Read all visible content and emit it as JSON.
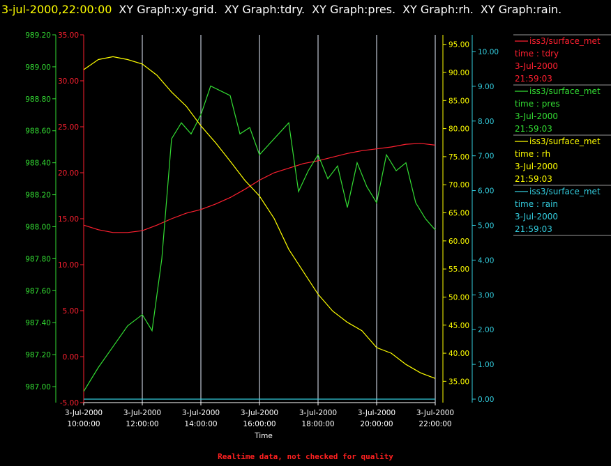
{
  "header": {
    "timestamp": "3-jul-2000,22:00:00",
    "graph_titles": [
      "XY Graph:xy-grid.",
      "XY Graph:tdry.",
      "XY Graph:pres.",
      "XY Graph:rh.",
      "XY Graph:rain."
    ]
  },
  "footer": {
    "note": "Realtime data, not checked for quality"
  },
  "colors": {
    "tdry": "#ff2030",
    "pres": "#33dd33",
    "rh": "#ffff00",
    "rain": "#33ccdd",
    "grid": "#e8f0ff"
  },
  "legend": [
    {
      "source": "iss3/surface_met",
      "field": "time : tdry",
      "date": "3-Jul-2000",
      "time": "21:59:03"
    },
    {
      "source": "iss3/surface_met",
      "field": "time : pres",
      "date": "3-Jul-2000",
      "time": "21:59:03"
    },
    {
      "source": "iss3/surface_met",
      "field": "time : rh",
      "date": "3-Jul-2000",
      "time": "21:59:03"
    },
    {
      "source": "iss3/surface_met",
      "field": "time : rain",
      "date": "3-Jul-2000",
      "time": "21:59:03"
    }
  ],
  "chart_data": {
    "type": "line",
    "xlabel": "Time",
    "xlim": [
      "3-Jul-2000 10:00:00",
      "3-Jul-2000 22:00:00"
    ],
    "x_ticks": [
      {
        "date": "3-Jul-2000",
        "time": "10:00:00"
      },
      {
        "date": "3-Jul-2000",
        "time": "12:00:00"
      },
      {
        "date": "3-Jul-2000",
        "time": "14:00:00"
      },
      {
        "date": "3-Jul-2000",
        "time": "16:00:00"
      },
      {
        "date": "3-Jul-2000",
        "time": "18:00:00"
      },
      {
        "date": "3-Jul-2000",
        "time": "20:00:00"
      },
      {
        "date": "3-Jul-2000",
        "time": "22:00:00"
      }
    ],
    "vertical_grid": true,
    "axes": {
      "pres": {
        "ylim": [
          986.9,
          989.2
        ],
        "ticks": [
          "989.20",
          "989.00",
          "988.80",
          "988.60",
          "988.40",
          "988.20",
          "988.00",
          "987.80",
          "987.60",
          "987.40",
          "987.20",
          "987.00"
        ]
      },
      "tdry": {
        "ylim": [
          -5,
          35
        ],
        "ticks": [
          "35.00",
          "30.00",
          "25.00",
          "20.00",
          "15.00",
          "10.00",
          "5.00",
          "0.00",
          "-5.00"
        ]
      },
      "rh": {
        "ylim": [
          31.2,
          96.7
        ],
        "ticks": [
          "95.00",
          "90.00",
          "85.00",
          "80.00",
          "75.00",
          "70.00",
          "65.00",
          "60.00",
          "55.00",
          "50.00",
          "45.00",
          "40.00",
          "35.00"
        ]
      },
      "rain": {
        "ylim": [
          -0.1,
          10.48
        ],
        "ticks": [
          "10.00",
          "9.00",
          "8.00",
          "7.00",
          "6.00",
          "5.00",
          "4.00",
          "3.00",
          "2.00",
          "1.00",
          "0.00"
        ]
      }
    },
    "series": [
      {
        "name": "tdry",
        "x": [
          "10:00",
          "10:30",
          "11:00",
          "11:30",
          "12:00",
          "12:30",
          "13:00",
          "13:30",
          "14:00",
          "14:30",
          "15:00",
          "15:30",
          "16:00",
          "16:30",
          "17:00",
          "17:30",
          "18:00",
          "18:30",
          "19:00",
          "19:30",
          "20:00",
          "20:30",
          "21:00",
          "21:30",
          "22:00"
        ],
        "y": [
          14.3,
          13.8,
          13.5,
          13.5,
          13.7,
          14.3,
          15.0,
          15.6,
          16.0,
          16.6,
          17.3,
          18.2,
          19.2,
          20.0,
          20.5,
          21.0,
          21.3,
          21.7,
          22.1,
          22.4,
          22.6,
          22.8,
          23.1,
          23.2,
          23.0
        ]
      },
      {
        "name": "pres",
        "x": [
          "10:00",
          "10:30",
          "11:00",
          "11:30",
          "12:00",
          "12:20",
          "12:40",
          "13:00",
          "13:20",
          "13:40",
          "14:00",
          "14:20",
          "14:40",
          "15:00",
          "15:20",
          "15:40",
          "16:00",
          "16:30",
          "17:00",
          "17:20",
          "17:40",
          "18:00",
          "18:20",
          "18:40",
          "19:00",
          "19:20",
          "19:40",
          "20:00",
          "20:20",
          "20:40",
          "21:00",
          "21:20",
          "21:40",
          "22:00"
        ],
        "y": [
          986.97,
          987.12,
          987.25,
          987.38,
          987.45,
          987.35,
          987.8,
          988.55,
          988.65,
          988.58,
          988.7,
          988.88,
          988.85,
          988.82,
          988.58,
          988.62,
          988.45,
          988.55,
          988.65,
          988.22,
          988.35,
          988.45,
          988.3,
          988.38,
          988.12,
          988.4,
          988.25,
          988.15,
          988.45,
          988.35,
          988.4,
          988.15,
          988.05,
          987.98
        ]
      },
      {
        "name": "rh",
        "x": [
          "10:00",
          "10:30",
          "11:00",
          "11:30",
          "12:00",
          "12:30",
          "13:00",
          "13:30",
          "14:00",
          "14:30",
          "15:00",
          "15:30",
          "16:00",
          "16:30",
          "17:00",
          "17:30",
          "18:00",
          "18:30",
          "19:00",
          "19:30",
          "20:00",
          "20:30",
          "21:00",
          "21:30",
          "22:00"
        ],
        "y": [
          90.5,
          92.3,
          92.8,
          92.3,
          91.5,
          89.5,
          86.5,
          84.0,
          80.5,
          77.5,
          74.2,
          70.8,
          68.0,
          64.0,
          58.5,
          54.5,
          50.5,
          47.5,
          45.5,
          44.0,
          41.0,
          40.0,
          38.0,
          36.5,
          35.5
        ]
      },
      {
        "name": "rain",
        "x": [
          "10:00",
          "22:00"
        ],
        "y": [
          0.0,
          0.0
        ]
      }
    ]
  }
}
